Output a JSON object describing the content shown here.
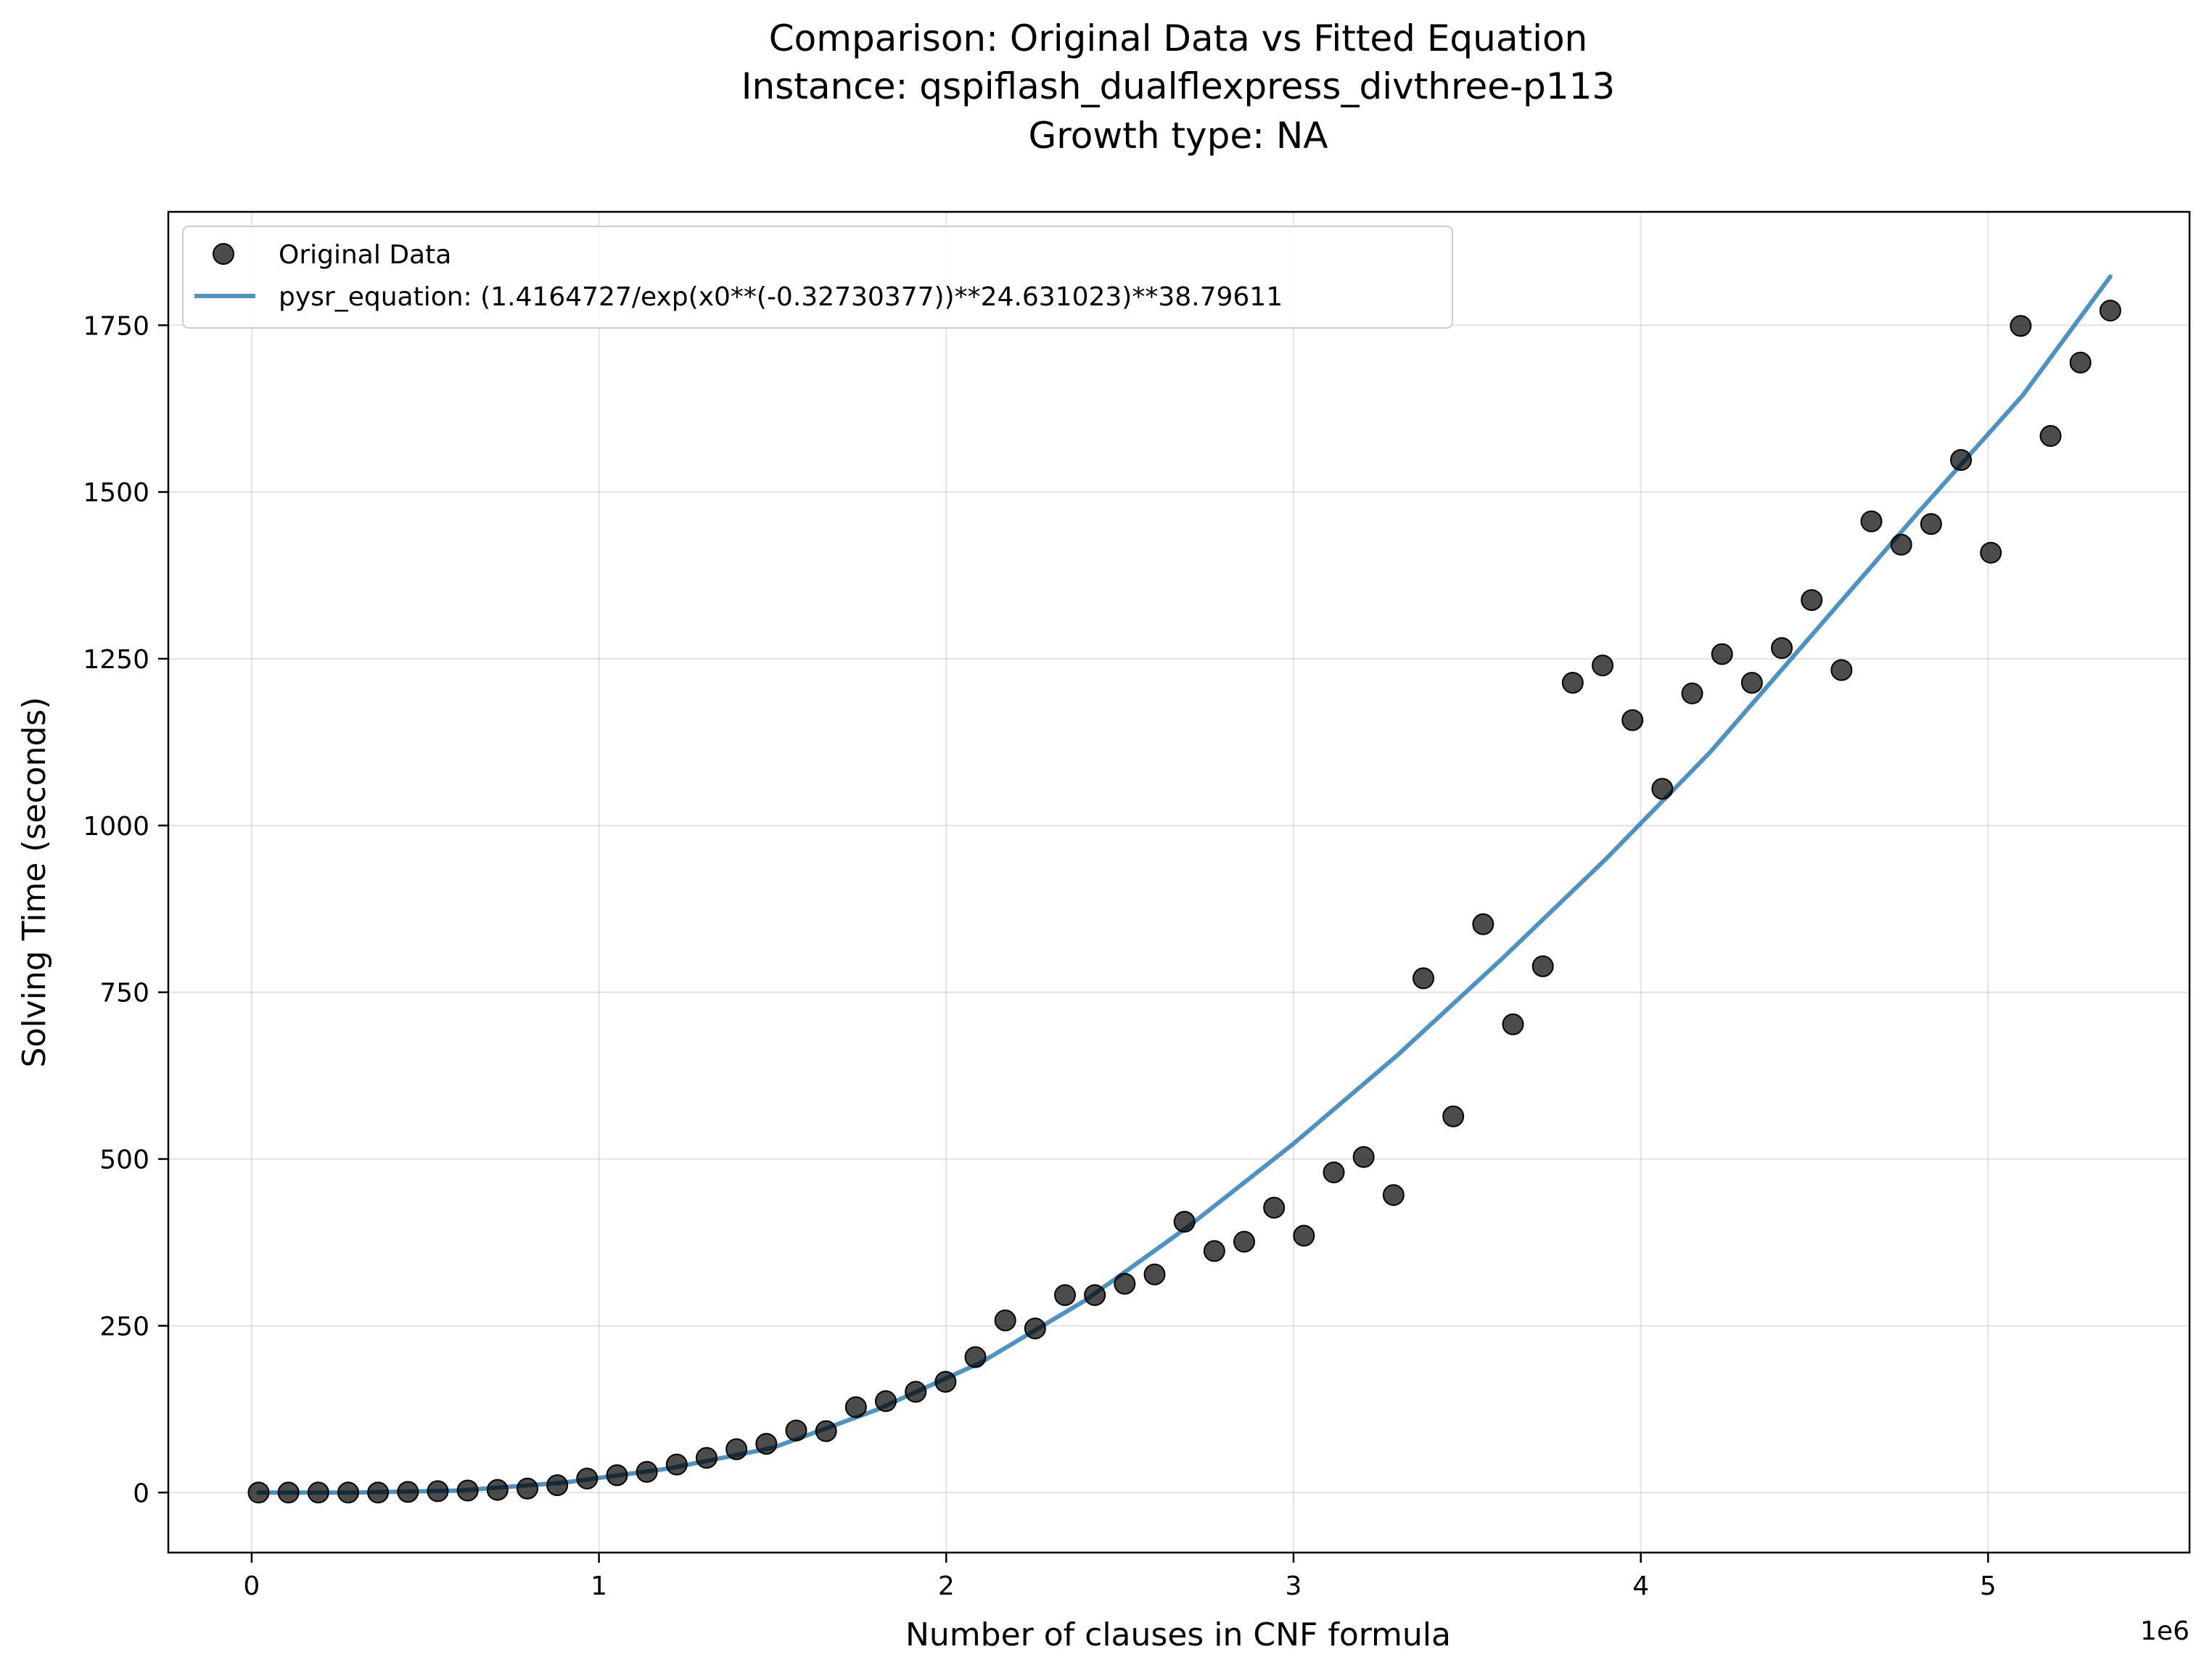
{
  "chart_data": {
    "type": "scatter",
    "title_lines": [
      "Comparison: Original Data vs Fitted Equation",
      "Instance: qspiflash_dualflexpress_divthree-p113",
      "Growth type: NA"
    ],
    "xlabel": "Number of clauses in CNF formula",
    "ylabel": "Solving Time (seconds)",
    "x_offset_label": "1e6",
    "x_scale": 1000000,
    "xlim": [
      -240000,
      5580000
    ],
    "ylim": [
      -90,
      1920
    ],
    "x_ticks": [
      0,
      1000000,
      2000000,
      3000000,
      4000000,
      5000000
    ],
    "x_tick_labels": [
      "0",
      "1",
      "2",
      "3",
      "4",
      "5"
    ],
    "y_ticks": [
      0,
      250,
      500,
      750,
      1000,
      1250,
      1500,
      1750
    ],
    "y_tick_labels": [
      "0",
      "250",
      "500",
      "750",
      "1000",
      "1250",
      "1500",
      "1750"
    ],
    "grid": true,
    "legend_position": "upper-left",
    "series": [
      {
        "name": "Original Data",
        "kind": "scatter",
        "color": "#000000",
        "opacity": 0.7,
        "x": [
          20000,
          106000,
          192000,
          278000,
          364000,
          450000,
          536000,
          622000,
          708000,
          794000,
          880000,
          966000,
          1052000,
          1138000,
          1224000,
          1310000,
          1396000,
          1482000,
          1568000,
          1654000,
          1740000,
          1826000,
          1912000,
          1998000,
          2084000,
          2170000,
          2256000,
          2342000,
          2428000,
          2514000,
          2600000,
          2686000,
          2772000,
          2858000,
          2944000,
          3030000,
          3116000,
          3202000,
          3288000,
          3374000,
          3460000,
          3546000,
          3632000,
          3718000,
          3804000,
          3890000,
          3976000,
          4062000,
          4148000,
          4234000,
          4320000,
          4406000,
          4492000,
          4578000,
          4664000,
          4750000,
          4836000,
          4922000,
          5008000,
          5094000,
          5180000,
          5266000,
          5352000
        ],
        "y": [
          0,
          0,
          0,
          0,
          0,
          1,
          2,
          3,
          4,
          6,
          11,
          21,
          26,
          31,
          42,
          52,
          65,
          73,
          93,
          92,
          128,
          137,
          151,
          166,
          203,
          258,
          246,
          296,
          296,
          313,
          327,
          406,
          362,
          376,
          427,
          385,
          480,
          503,
          446,
          771,
          564,
          852,
          702,
          789,
          1214,
          1240,
          1158,
          1055,
          1198,
          1257,
          1214,
          1266,
          1338,
          1233,
          1456,
          1421,
          1452,
          1548,
          1409,
          1749,
          1584,
          1694,
          1772
        ]
      },
      {
        "name": "pysr_equation: (1.4164727/exp(x0**(-0.32730377))**24.631023)**38.79611",
        "kind": "line",
        "color": "#1f77b4",
        "opacity": 0.8,
        "x": [
          20000,
          300000,
          600000,
          900000,
          1200000,
          1500000,
          1800000,
          2100000,
          2400000,
          2700000,
          3000000,
          3300000,
          3600000,
          3900000,
          4200000,
          4500000,
          4800000,
          5100000,
          5352000
        ],
        "y": [
          0,
          0.1,
          3,
          15,
          36,
          67,
          124,
          195,
          288,
          400,
          523,
          656,
          800,
          950,
          1110,
          1290,
          1470,
          1645,
          1823
        ]
      }
    ]
  }
}
